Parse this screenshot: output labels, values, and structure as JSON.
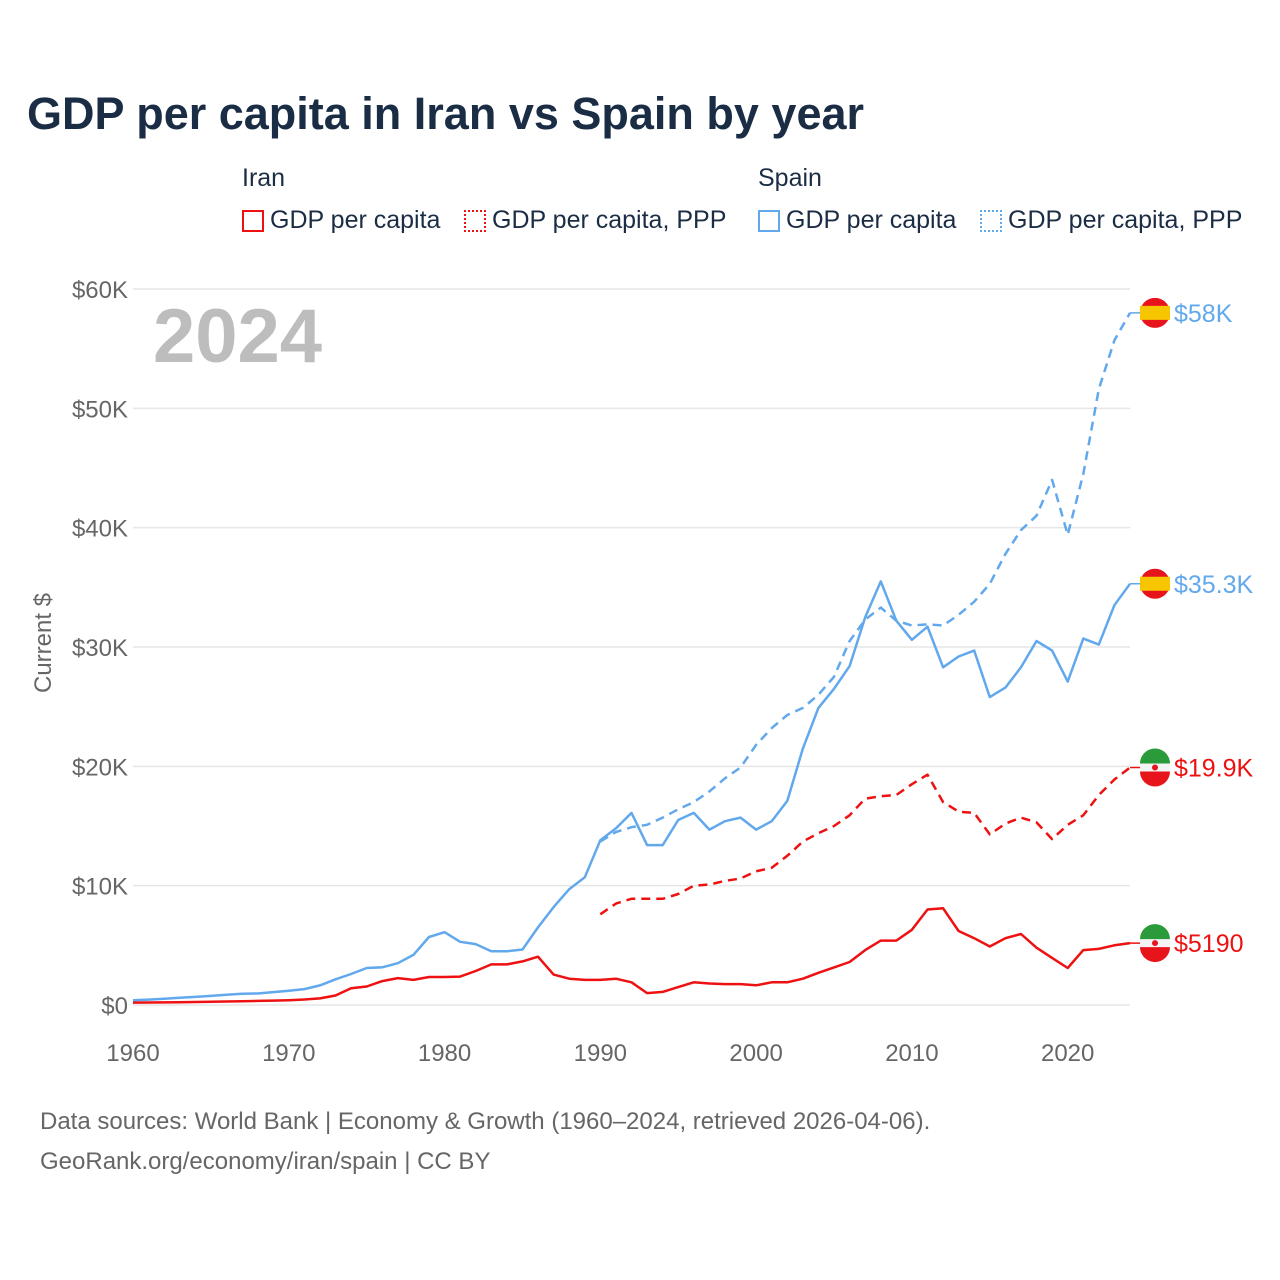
{
  "chart_data": {
    "type": "line",
    "title": "GDP per capita in Iran vs Spain by year",
    "ylabel": "Current $",
    "xlabel": "",
    "ylim": [
      0,
      60000
    ],
    "xlim": [
      1960,
      2024
    ],
    "yticks": [
      "$0",
      "$10K",
      "$20K",
      "$30K",
      "$40K",
      "$50K",
      "$60K"
    ],
    "ytick_values": [
      0,
      10000,
      20000,
      30000,
      40000,
      50000,
      60000
    ],
    "xticks": [
      "1960",
      "1970",
      "1980",
      "1990",
      "2000",
      "2010",
      "2020"
    ],
    "xtick_values": [
      1960,
      1970,
      1980,
      1990,
      2000,
      2010,
      2020
    ],
    "year_watermark": "2024",
    "legend": {
      "groups": [
        {
          "name": "Iran",
          "items": [
            "GDP per capita",
            "GDP per capita, PPP"
          ]
        },
        {
          "name": "Spain",
          "items": [
            "GDP per capita",
            "GDP per capita, PPP"
          ]
        }
      ]
    },
    "colors": {
      "iran": "#ee1111",
      "spain": "#62a8ec"
    },
    "series": [
      {
        "name": "Spain GDP per capita",
        "country": "spain",
        "dashed": false,
        "start": 1960,
        "end_label": "$35.3K",
        "values": [
          400,
          450,
          520,
          600,
          680,
          760,
          860,
          950,
          960,
          1080,
          1200,
          1330,
          1640,
          2150,
          2600,
          3100,
          3160,
          3500,
          4200,
          5700,
          6100,
          5300,
          5100,
          4500,
          4500,
          4650,
          6500,
          8200,
          9700,
          10700,
          13800,
          14800,
          16100,
          13400,
          13400,
          15500,
          16100,
          14700,
          15400,
          15700,
          14700,
          15400,
          17100,
          21500,
          24900,
          26500,
          28400,
          32500,
          35500,
          32200,
          30600,
          31700,
          28300,
          29200,
          29700,
          25800,
          26600,
          28300,
          30500,
          29700,
          27100,
          30700,
          30200,
          33500,
          35300
        ]
      },
      {
        "name": "Spain GDP per capita, PPP",
        "country": "spain",
        "dashed": true,
        "start": 1990,
        "end_label": "$58K",
        "values": [
          13700,
          14500,
          14900,
          15100,
          15700,
          16400,
          17000,
          17900,
          19000,
          19900,
          21800,
          23200,
          24300,
          24900,
          26000,
          27500,
          30500,
          32300,
          33300,
          32200,
          31800,
          31900,
          31800,
          32700,
          33800,
          35300,
          37800,
          39800,
          41000,
          44000,
          39400,
          44500,
          51600,
          55700,
          58000
        ]
      },
      {
        "name": "Iran GDP per capita",
        "country": "iran",
        "dashed": false,
        "start": 1960,
        "end_label": "$5190",
        "values": [
          200,
          210,
          220,
          230,
          250,
          270,
          290,
          310,
          340,
          370,
          400,
          460,
          550,
          800,
          1400,
          1550,
          2000,
          2250,
          2100,
          2350,
          2350,
          2380,
          2850,
          3400,
          3400,
          3650,
          4050,
          2550,
          2200,
          2100,
          2100,
          2200,
          1900,
          1000,
          1100,
          1500,
          1900,
          1800,
          1750,
          1750,
          1650,
          1900,
          1900,
          2200,
          2700,
          3150,
          3600,
          4600,
          5400,
          5400,
          6300,
          8000,
          8100,
          6200,
          5600,
          4900,
          5600,
          5950,
          4800,
          3950,
          3100,
          4600,
          4700,
          5000,
          5190
        ]
      },
      {
        "name": "Iran GDP per capita, PPP",
        "country": "iran",
        "dashed": true,
        "start": 1990,
        "end_label": "$19.9K",
        "values": [
          7600,
          8500,
          8900,
          8900,
          8900,
          9300,
          10000,
          10100,
          10400,
          10600,
          11200,
          11500,
          12500,
          13700,
          14400,
          15000,
          15900,
          17300,
          17500,
          17600,
          18500,
          19300,
          17000,
          16200,
          16100,
          14300,
          15200,
          15700,
          15300,
          13900,
          15100,
          15900,
          17600,
          18900,
          19900
        ]
      }
    ]
  },
  "footer": {
    "line1": "Data sources: World Bank | Economy & Growth (1960–2024, retrieved 2026-04-06).",
    "line2": "GeoRank.org/economy/iran/spain | CC BY"
  }
}
